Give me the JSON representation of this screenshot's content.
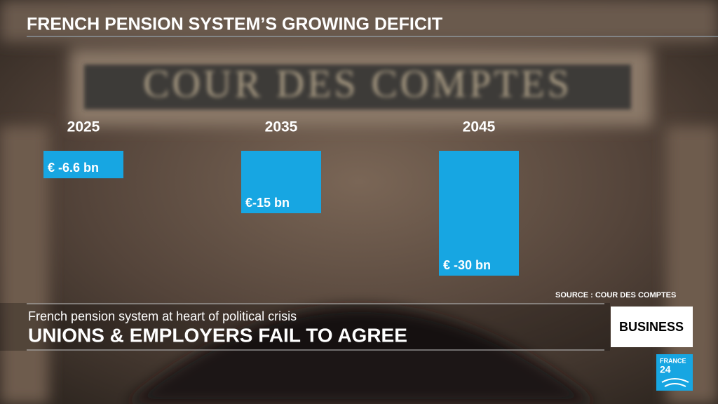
{
  "chart_data": {
    "type": "bar",
    "title": "FRENCH PENSION SYSTEM’S GROWING DEFICIT",
    "categories": [
      "2025",
      "2035",
      "2045"
    ],
    "values": [
      -6.6,
      -15,
      -30
    ],
    "value_labels": [
      "€ -6.6 bn",
      "€-15 bn",
      "€ -30 bn"
    ],
    "color": "#17a6e2",
    "source": "SOURCE : COUR DES COMPTES"
  },
  "background_inscription": "COUR DES COMPTES",
  "banner": {
    "subtitle": "French pension system at heart of political crisis",
    "headline": "UNIONS & EMPLOYERS FAIL TO AGREE"
  },
  "section_tag": "BUSINESS",
  "logo": {
    "line1": "FRANCE",
    "line2": "24"
  }
}
